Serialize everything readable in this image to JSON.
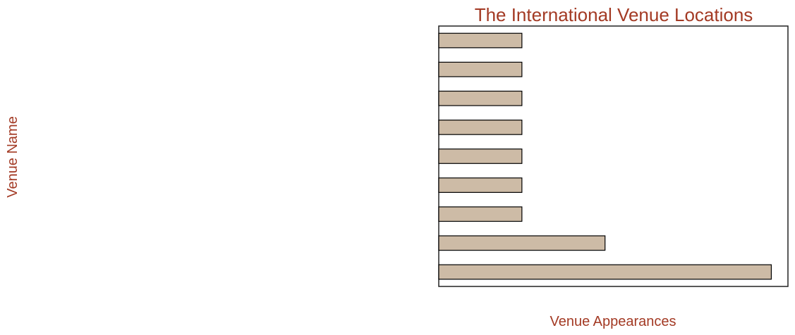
{
  "chart_data": {
    "type": "bar",
    "orientation": "horizontal",
    "title": "The International Venue Locations",
    "xlabel": "Venue Appearances",
    "ylabel": "Venue Name",
    "categories": [
      "",
      "",
      "",
      "",
      "",
      "",
      "",
      "",
      ""
    ],
    "values": [
      4,
      2,
      1,
      1,
      1,
      1,
      1,
      1,
      1
    ],
    "xlim": [
      0,
      4.2
    ],
    "grid": false,
    "tick_labels_visible": false,
    "colors": {
      "bar_fill": "#cdbba6",
      "bar_edge": "#000000",
      "text": "#a33a24",
      "axes": "#222222"
    }
  }
}
